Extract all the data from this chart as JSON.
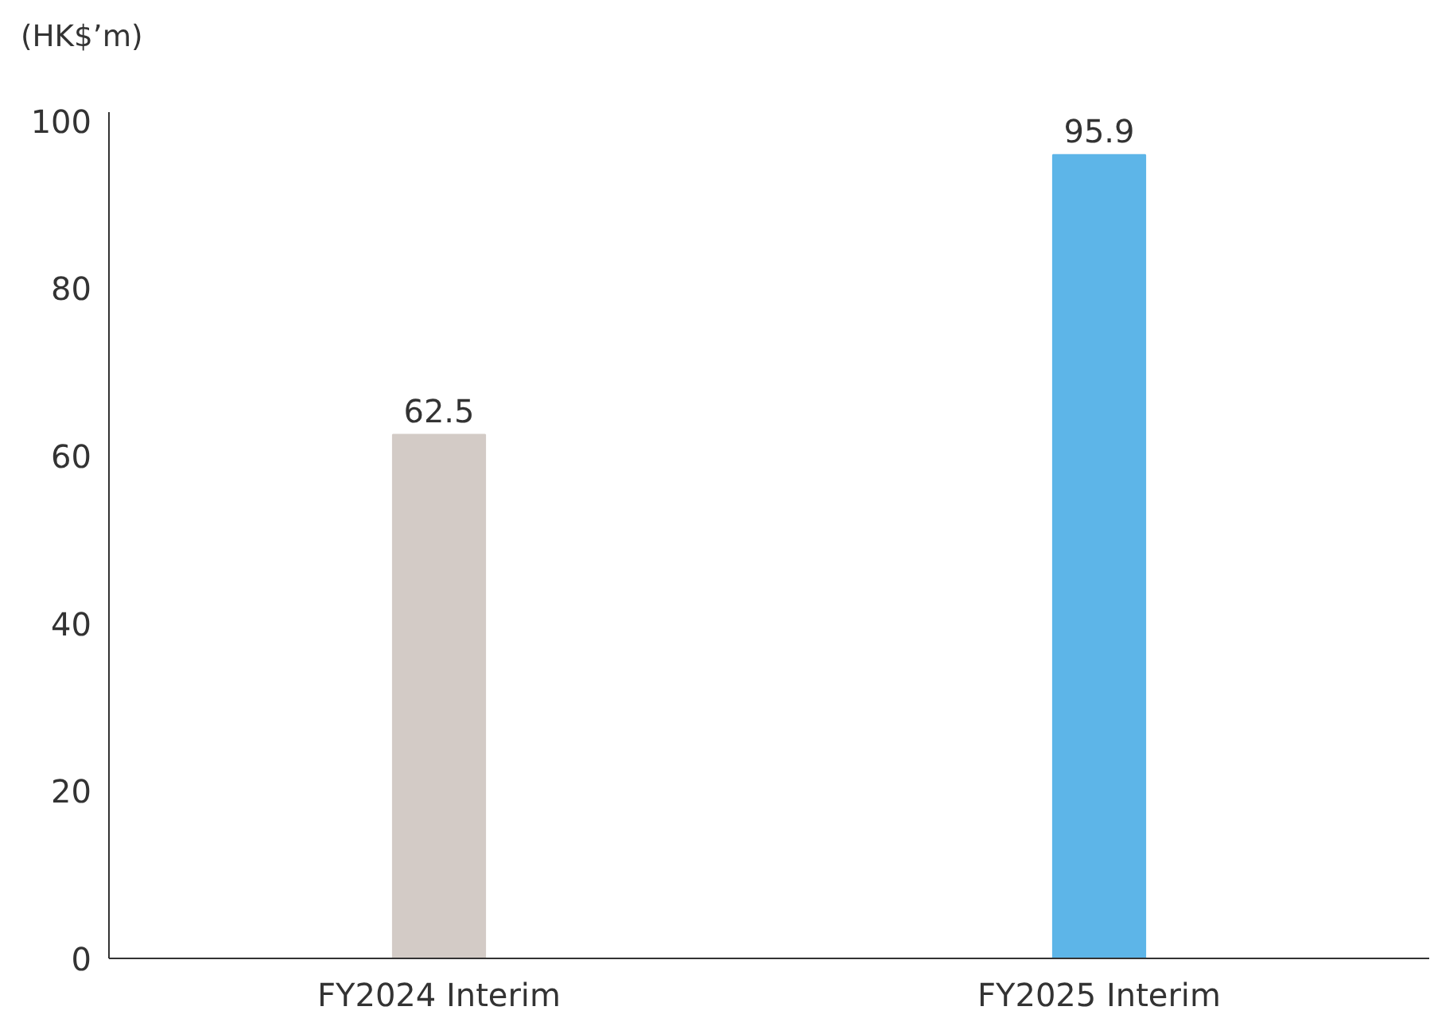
{
  "chart_data": {
    "type": "bar",
    "ylabel": "(HK$’m)",
    "categories": [
      "FY2024 Interim",
      "FY2025 Interim"
    ],
    "values": [
      62.5,
      95.9
    ],
    "colors": [
      "#d3cbc6",
      "#5db5e8"
    ],
    "ylim": [
      0,
      101
    ],
    "yticks": [
      0,
      20,
      40,
      60,
      80,
      100
    ],
    "data_labels": true,
    "grid": false
  }
}
